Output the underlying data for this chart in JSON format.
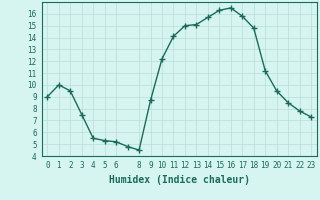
{
  "x": [
    0,
    1,
    2,
    3,
    4,
    5,
    6,
    7,
    8,
    9,
    10,
    11,
    12,
    13,
    14,
    15,
    16,
    17,
    18,
    19,
    20,
    21,
    22,
    23
  ],
  "y": [
    9,
    10,
    9.5,
    7.5,
    5.5,
    5.3,
    5.2,
    4.8,
    4.5,
    8.7,
    12.2,
    14.1,
    15.0,
    15.1,
    15.7,
    16.3,
    16.5,
    15.8,
    14.8,
    11.2,
    9.5,
    8.5,
    7.8,
    7.3
  ],
  "line_color": "#1a6b5a",
  "marker": "+",
  "marker_size": 4,
  "bg_color": "#d6f5f0",
  "grid_color": "#b8ddd8",
  "xlabel": "Humidex (Indice chaleur)",
  "ylim": [
    4,
    17
  ],
  "xlim": [
    -0.5,
    23.5
  ],
  "yticks": [
    4,
    5,
    6,
    7,
    8,
    9,
    10,
    11,
    12,
    13,
    14,
    15,
    16
  ],
  "xticks": [
    0,
    1,
    2,
    3,
    4,
    5,
    6,
    8,
    9,
    10,
    11,
    12,
    13,
    14,
    15,
    16,
    17,
    18,
    19,
    20,
    21,
    22,
    23
  ],
  "tick_fontsize": 5.5,
  "xlabel_fontsize": 7,
  "line_width": 1.0,
  "marker_linewidth": 1.0
}
